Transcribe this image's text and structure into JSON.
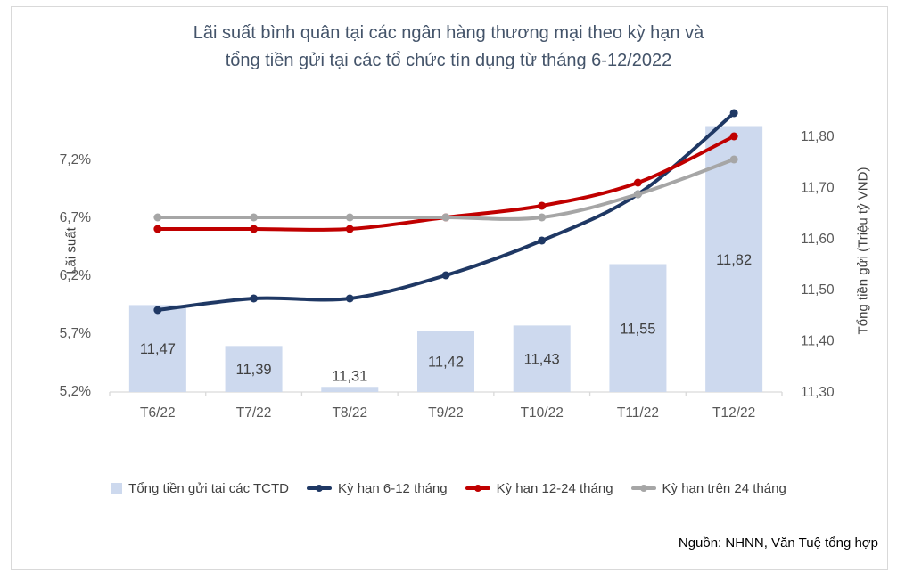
{
  "title": {
    "line1": "Lãi suất bình quân tại các ngân hàng thương mại theo kỳ hạn và",
    "line2": "tổng tiền gửi tại các tổ chức tín dụng từ tháng 6-12/2022"
  },
  "source": "Nguồn: NHNN, Văn Tuệ tổng hợp",
  "colors": {
    "bar_fill": "#cdd9ee",
    "line_navy": "#1f3864",
    "line_red": "#c00000",
    "line_gray": "#a6a6a6",
    "title_text": "#44546a",
    "tick_text": "#595959",
    "data_label_text": "#404040",
    "axis_line": "#d9d9d9"
  },
  "chart_data": {
    "type": "combo",
    "categories": [
      "T6/22",
      "T7/22",
      "T8/22",
      "T9/22",
      "T10/22",
      "T11/22",
      "T12/22"
    ],
    "bar_series": {
      "name": "Tổng tiền gửi tại các TCTD",
      "axis": "right",
      "values": [
        11.47,
        11.39,
        11.31,
        11.42,
        11.43,
        11.55,
        11.82
      ],
      "labels": [
        "11,47",
        "11,39",
        "11,31",
        "11,42",
        "11,43",
        "11,55",
        "11,82"
      ],
      "color": "#cdd9ee"
    },
    "line_series": [
      {
        "name": "Kỳ hạn 6-12 tháng",
        "axis": "left",
        "color": "#1f3864",
        "values": [
          5.9,
          6.0,
          6.0,
          6.2,
          6.5,
          6.9,
          7.6
        ]
      },
      {
        "name": "Kỳ hạn 12-24 tháng",
        "axis": "left",
        "color": "#c00000",
        "values": [
          6.6,
          6.6,
          6.6,
          6.7,
          6.8,
          7.0,
          7.4
        ]
      },
      {
        "name": "Kỳ hạn trên 24 tháng",
        "axis": "left",
        "color": "#a6a6a6",
        "values": [
          6.7,
          6.7,
          6.7,
          6.7,
          6.7,
          6.9,
          7.2
        ]
      }
    ],
    "left_axis": {
      "title": "Lãi suất",
      "tick_labels": [
        "5,2%",
        "5,7%",
        "6,2%",
        "6,7%",
        "7,2%"
      ],
      "tick_values": [
        5.2,
        5.7,
        6.2,
        6.7,
        7.2
      ],
      "range": [
        5.2,
        7.7
      ]
    },
    "right_axis": {
      "title": "Tổng tiền gửi (Triệu tỷ VND)",
      "tick_labels": [
        "11,30",
        "11,40",
        "11,50",
        "11,60",
        "11,70",
        "11,80"
      ],
      "tick_values": [
        11.3,
        11.4,
        11.5,
        11.6,
        11.7,
        11.8
      ],
      "range": [
        11.3,
        11.85
      ]
    },
    "legend_position": "bottom",
    "grid": false
  },
  "legend": {
    "items": [
      {
        "label": "Tổng tiền gửi tại các TCTD",
        "swatch": "bar",
        "color": "#cdd9ee"
      },
      {
        "label": "Kỳ hạn 6-12 tháng",
        "swatch": "line",
        "color": "#1f3864"
      },
      {
        "label": "Kỳ hạn 12-24 tháng",
        "swatch": "line",
        "color": "#c00000"
      },
      {
        "label": "Kỳ hạn trên 24 tháng",
        "swatch": "line",
        "color": "#a6a6a6"
      }
    ]
  }
}
